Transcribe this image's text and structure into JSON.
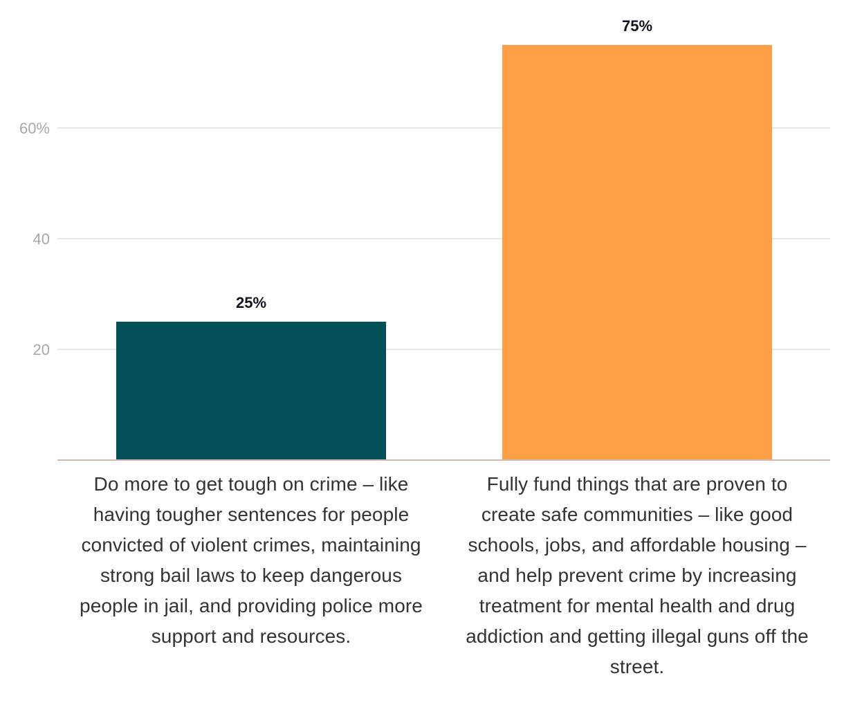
{
  "chart_data": {
    "type": "bar",
    "title": "",
    "xlabel": "",
    "ylabel": "",
    "ylim": [
      0,
      75
    ],
    "yticks": [
      20,
      40,
      60
    ],
    "ytick_labels": [
      "20",
      "40",
      "60%"
    ],
    "categories": [
      "Do more to get tough on crime – like having tougher sentences for people convicted of violent crimes, maintaining strong bail laws to keep dangerous people in jail, and providing police more support and resources.",
      "Fully fund things that are proven to create safe communities – like good schools, jobs, and affordable housing – and help prevent crime by increasing treatment for mental health and drug addiction and getting illegal guns off the street."
    ],
    "values": [
      25,
      75
    ],
    "value_labels": [
      "25%",
      "75%"
    ],
    "colors": [
      "#024f57",
      "#ff9f47"
    ],
    "grid": true
  },
  "colors": {
    "gridline": "#e6e6e6",
    "baseline": "#d2b8b0",
    "tick_text": "#a8a8a8",
    "value_text": "#111122",
    "category_text": "#333333"
  }
}
